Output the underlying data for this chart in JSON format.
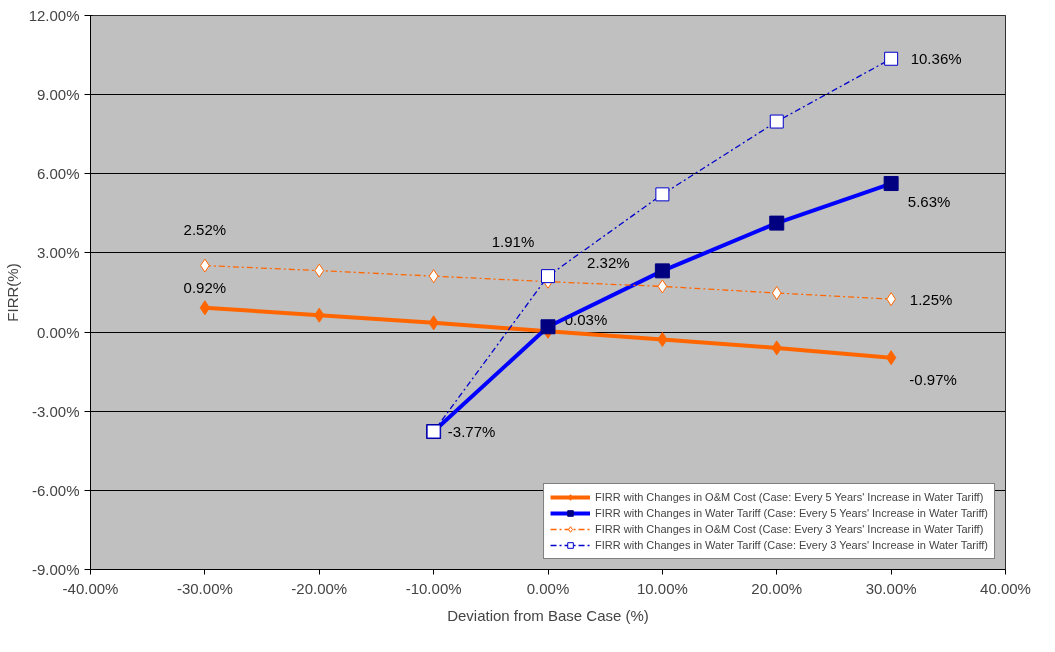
{
  "chart_data": {
    "type": "line",
    "xlabel": "Deviation from Base Case (%)",
    "ylabel": "FIRR(%)",
    "xlim": [
      -40,
      40
    ],
    "ylim": [
      -9,
      12
    ],
    "xticks": [
      {
        "value": -40,
        "label": "-40.00%"
      },
      {
        "value": -30,
        "label": "-30.00%"
      },
      {
        "value": -20,
        "label": "-20.00%"
      },
      {
        "value": -10,
        "label": "-10.00%"
      },
      {
        "value": 0,
        "label": "0.00%"
      },
      {
        "value": 10,
        "label": "10.00%"
      },
      {
        "value": 20,
        "label": "20.00%"
      },
      {
        "value": 30,
        "label": "30.00%"
      },
      {
        "value": 40,
        "label": "40.00%"
      }
    ],
    "yticks": [
      {
        "value": -9,
        "label": "-9.00%"
      },
      {
        "value": -6,
        "label": "-6.00%"
      },
      {
        "value": -3,
        "label": "-3.00%"
      },
      {
        "value": 0,
        "label": "0.00%"
      },
      {
        "value": 3,
        "label": "3.00%"
      },
      {
        "value": 6,
        "label": "6.00%"
      },
      {
        "value": 9,
        "label": "9.00%"
      },
      {
        "value": 12,
        "label": "12.00%"
      }
    ],
    "grid": "y",
    "legend": "bottom right",
    "series": [
      {
        "name": "FIRR with Changes in O&M Cost (Case: Every 5 Years' Increase in Water Tariff)",
        "color": "#ff6600",
        "marker": "diamond",
        "line_style": "solid",
        "x": [
          -30,
          -20,
          -10,
          0,
          10,
          20,
          30
        ],
        "values": [
          0.92,
          0.64,
          0.35,
          0.03,
          -0.28,
          -0.6,
          -0.97
        ],
        "value_labels": [
          "0.92%",
          null,
          null,
          "0.03%",
          null,
          null,
          "-0.97%"
        ]
      },
      {
        "name": "FIRR with Changes in Water Tariff (Case: Every 5 Years' Increase in Water Tariff)",
        "color": "#0000ff",
        "marker": "square",
        "line_style": "solid",
        "x": [
          -10,
          0,
          10,
          20,
          30
        ],
        "values": [
          -3.77,
          0.2,
          2.32,
          4.13,
          5.63
        ],
        "value_labels": [
          "-3.77%",
          null,
          "2.32%",
          null,
          "5.63%"
        ]
      },
      {
        "name": "FIRR with Changes in O&M Cost (Case: Every 3 Years' Increase in Water Tariff)",
        "color": "#ff6600",
        "marker": "diamond",
        "line_style": "dashed",
        "x": [
          -30,
          -20,
          -10,
          0,
          10,
          20,
          30
        ],
        "values": [
          2.52,
          2.33,
          2.12,
          1.91,
          1.73,
          1.48,
          1.25
        ],
        "value_labels": [
          "2.52%",
          null,
          null,
          "1.91%",
          null,
          null,
          "1.25%"
        ]
      },
      {
        "name": "FIRR with Changes in Water Tariff (Case: Every 3 Years' Increase in Water Tariff)",
        "color": "#0000cc",
        "marker": "square",
        "line_style": "dashed",
        "x": [
          -10,
          0,
          10,
          20,
          30
        ],
        "values": [
          -3.77,
          2.12,
          5.22,
          7.98,
          10.36
        ],
        "value_labels": [
          null,
          null,
          null,
          null,
          "10.36%"
        ]
      }
    ]
  }
}
